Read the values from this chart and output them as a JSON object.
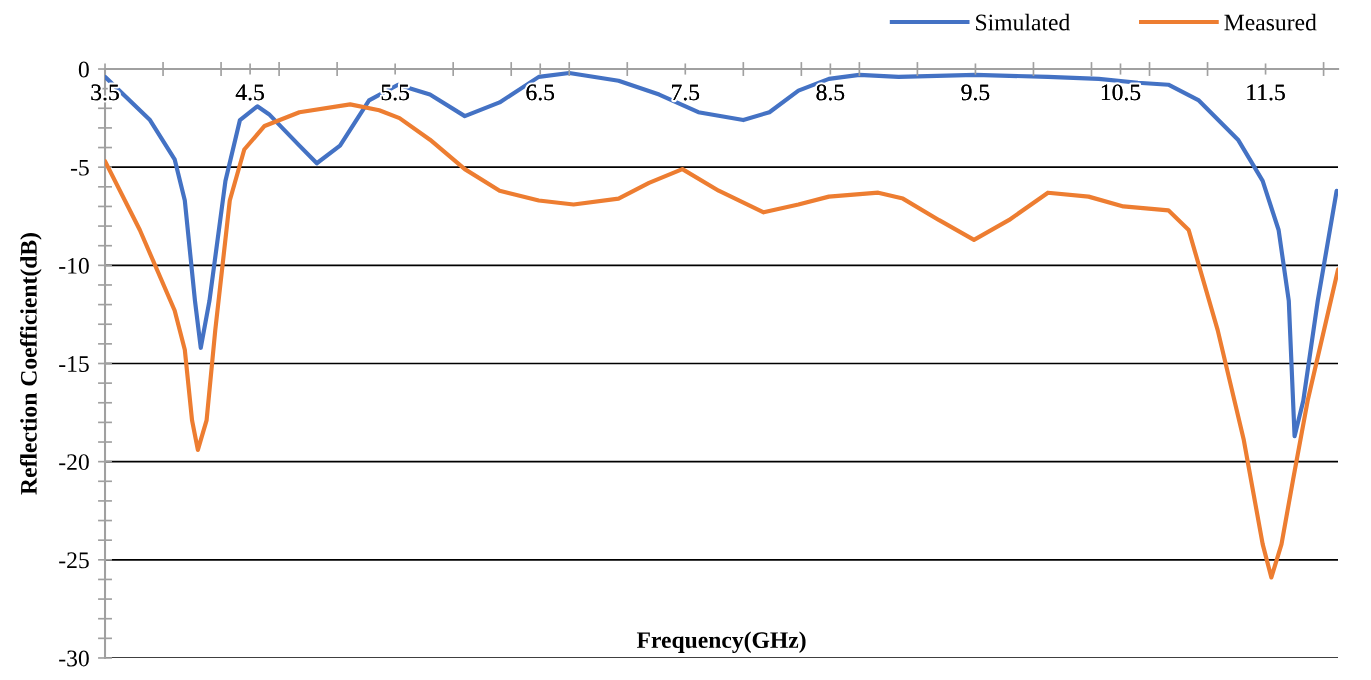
{
  "chart_data": {
    "type": "line",
    "xlabel": "Frequency(GHz)",
    "ylabel": "Reflection Coefficient(dB)",
    "xlim": [
      3.5,
      12
    ],
    "ylim": [
      -30,
      0
    ],
    "xticks": [
      3.5,
      {
        "value": 3.9,
        "label": null
      },
      {
        "value": 4.3,
        "label": null
      },
      4.5,
      {
        "value": 4.7,
        "label": null
      },
      {
        "value": 5.1,
        "label": null
      },
      5.5,
      {
        "value": 5.9,
        "label": null
      },
      {
        "value": 6.3,
        "label": null
      },
      6.5,
      {
        "value": 6.7,
        "label": null
      },
      {
        "value": 7.1,
        "label": null
      },
      7.5,
      {
        "value": 7.9,
        "label": null
      },
      {
        "value": 8.3,
        "label": null
      },
      8.5,
      {
        "value": 8.7,
        "label": null
      },
      {
        "value": 9.1,
        "label": null
      },
      9.5,
      {
        "value": 9.9,
        "label": null
      },
      {
        "value": 10.3,
        "label": null
      },
      10.5,
      {
        "value": 10.7,
        "label": null
      },
      {
        "value": 11.1,
        "label": null
      },
      11.5,
      {
        "value": 11.9,
        "label": null
      }
    ],
    "yticks": [
      0,
      {
        "value": -1,
        "label": null
      },
      {
        "value": -2,
        "label": null
      },
      {
        "value": -3,
        "label": null
      },
      {
        "value": -4,
        "label": null
      },
      -5,
      {
        "value": -6,
        "label": null
      },
      {
        "value": -7,
        "label": null
      },
      {
        "value": -8,
        "label": null
      },
      {
        "value": -9,
        "label": null
      },
      -10,
      {
        "value": -11,
        "label": null
      },
      {
        "value": -12,
        "label": null
      },
      {
        "value": -13,
        "label": null
      },
      {
        "value": -14,
        "label": null
      },
      -15,
      {
        "value": -16,
        "label": null
      },
      {
        "value": -17,
        "label": null
      },
      {
        "value": -18,
        "label": null
      },
      {
        "value": -19,
        "label": null
      },
      -20,
      {
        "value": -21,
        "label": null
      },
      {
        "value": -22,
        "label": null
      },
      {
        "value": -23,
        "label": null
      },
      {
        "value": -24,
        "label": null
      },
      -25,
      {
        "value": -26,
        "label": null
      },
      {
        "value": -27,
        "label": null
      },
      {
        "value": -28,
        "label": null
      },
      {
        "value": -29,
        "label": null
      },
      -30
    ],
    "grid": "y",
    "legend": "top right",
    "marker": "none",
    "line_style": "solid",
    "series": [
      {
        "name": "Simulated",
        "color": "#4472c4",
        "x": [
          3.5,
          3.81,
          3.98,
          4.05,
          4.12,
          4.16,
          4.22,
          4.33,
          4.43,
          4.55,
          4.63,
          4.84,
          4.96,
          5.12,
          5.32,
          5.52,
          5.74,
          5.98,
          6.22,
          6.49,
          6.7,
          7.04,
          7.32,
          7.59,
          7.9,
          8.08,
          8.28,
          8.49,
          8.7,
          8.97,
          9.5,
          10.0,
          10.35,
          10.62,
          10.83,
          11.04,
          11.31,
          11.48,
          11.59,
          11.66,
          11.7,
          11.76,
          11.86,
          11.99
        ],
        "values": [
          -0.4,
          -2.6,
          -4.6,
          -6.7,
          -11.8,
          -14.2,
          -11.8,
          -5.7,
          -2.6,
          -1.9,
          -2.3,
          -3.9,
          -4.8,
          -3.9,
          -1.6,
          -0.8,
          -1.3,
          -2.4,
          -1.7,
          -0.4,
          -0.2,
          -0.6,
          -1.3,
          -2.2,
          -2.6,
          -2.2,
          -1.1,
          -0.5,
          -0.3,
          -0.4,
          -0.3,
          -0.4,
          -0.5,
          -0.7,
          -0.8,
          -1.6,
          -3.6,
          -5.7,
          -8.2,
          -11.8,
          -18.7,
          -16.9,
          -11.8,
          -6.2
        ]
      },
      {
        "name": "Measured",
        "color": "#ed7d31",
        "x": [
          3.5,
          3.74,
          3.98,
          4.05,
          4.1,
          4.14,
          4.2,
          4.26,
          4.36,
          4.46,
          4.6,
          4.84,
          5.19,
          5.39,
          5.53,
          5.74,
          5.98,
          6.22,
          6.49,
          6.73,
          7.04,
          7.25,
          7.48,
          7.73,
          8.04,
          8.28,
          8.49,
          8.83,
          9.0,
          9.25,
          9.49,
          9.73,
          10.0,
          10.28,
          10.52,
          10.83,
          10.97,
          11.17,
          11.35,
          11.48,
          11.54,
          11.61,
          11.69,
          11.79,
          12.0
        ],
        "values": [
          -4.7,
          -8.2,
          -12.3,
          -14.3,
          -17.9,
          -19.4,
          -17.9,
          -13.3,
          -6.7,
          -4.1,
          -2.9,
          -2.2,
          -1.8,
          -2.1,
          -2.5,
          -3.6,
          -5.1,
          -6.2,
          -6.7,
          -6.9,
          -6.6,
          -5.8,
          -5.1,
          -6.2,
          -7.3,
          -6.9,
          -6.5,
          -6.3,
          -6.6,
          -7.7,
          -8.7,
          -7.7,
          -6.3,
          -6.5,
          -7.0,
          -7.2,
          -8.2,
          -13.3,
          -18.9,
          -24.2,
          -25.9,
          -24.2,
          -20.9,
          -16.9,
          -10.2
        ]
      }
    ]
  }
}
